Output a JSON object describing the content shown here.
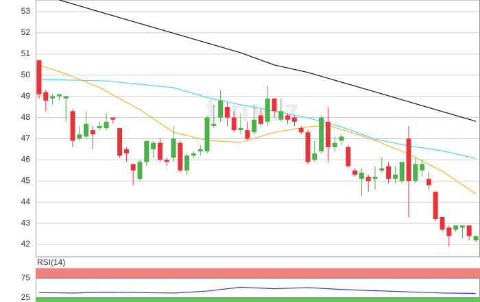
{
  "chart_data": [
    {
      "type": "candlestick",
      "watermark": "finviz",
      "up_color": "#4cb04c",
      "down_color": "#e8333a",
      "open": [
        50.7,
        49.2,
        48.9,
        49.0,
        48.9,
        48.3,
        47.0,
        47.1,
        47.4,
        47.5,
        47.5,
        48.0,
        47.5,
        46.5,
        45.8,
        45.1,
        45.9,
        46.5,
        46.8,
        46.0,
        46.1,
        46.8,
        45.5,
        46.2,
        46.4,
        46.4,
        47.6,
        48.0,
        48.5,
        48.0,
        47.4,
        47.4,
        47.3,
        48.1,
        47.8,
        48.9,
        47.9,
        48.1,
        48.0,
        47.5,
        47.3,
        46.0,
        46.4,
        47.8,
        46.6,
        46.9,
        46.6,
        45.5,
        45.1,
        45.2,
        45.1,
        45.5,
        45.7,
        45.1,
        45.0,
        47.0,
        45.0,
        45.5,
        45.1,
        44.5,
        43.3,
        42.8,
        42.7,
        42.8,
        42.9,
        42.2
      ],
      "high": [
        50.7,
        49.3,
        49.1,
        49.1,
        49.0,
        48.4,
        47.6,
        48.3,
        47.6,
        47.8,
        48.2,
        48.0,
        47.5,
        46.6,
        45.8,
        46.0,
        46.9,
        46.9,
        47.0,
        46.1,
        47.6,
        46.9,
        46.3,
        46.4,
        46.7,
        48.1,
        48.6,
        49.3,
        48.7,
        48.3,
        48.2,
        47.8,
        48.6,
        48.4,
        49.5,
        48.9,
        48.9,
        48.2,
        48.1,
        47.6,
        47.4,
        46.9,
        48.1,
        48.5,
        47.1,
        47.2,
        46.7,
        45.6,
        45.6,
        45.3,
        45.7,
        46.1,
        45.9,
        45.7,
        45.9,
        47.6,
        46.1,
        46.0,
        45.4,
        44.5,
        43.3,
        42.9,
        42.9,
        42.9,
        42.9,
        42.4
      ],
      "low": [
        48.9,
        48.3,
        48.6,
        48.8,
        47.8,
        46.6,
        46.9,
        47.0,
        46.5,
        47.4,
        47.4,
        47.7,
        46.1,
        45.9,
        44.8,
        45.0,
        45.7,
        46.1,
        45.9,
        45.7,
        45.9,
        45.4,
        45.3,
        46.1,
        46.2,
        46.3,
        47.5,
        47.8,
        47.6,
        47.3,
        47.2,
        46.9,
        47.2,
        47.6,
        47.6,
        48.0,
        47.8,
        47.7,
        47.6,
        47.2,
        45.8,
        45.9,
        46.3,
        45.9,
        46.4,
        46.7,
        45.6,
        45.2,
        44.3,
        44.5,
        44.6,
        45.4,
        44.9,
        44.9,
        44.9,
        43.3,
        44.9,
        45.2,
        44.6,
        43.1,
        42.6,
        41.9,
        42.6,
        42.3,
        42.2,
        42.1
      ],
      "close": [
        49.1,
        48.8,
        49.0,
        49.1,
        49.0,
        46.9,
        47.2,
        47.7,
        47.2,
        47.6,
        47.8,
        47.9,
        46.2,
        46.3,
        45.5,
        45.9,
        46.9,
        46.8,
        46.0,
        45.9,
        47.0,
        45.5,
        46.2,
        46.3,
        46.5,
        48.0,
        47.7,
        48.8,
        48.0,
        47.4,
        47.5,
        47.0,
        47.9,
        47.7,
        48.9,
        48.3,
        48.3,
        47.9,
        47.8,
        47.3,
        45.9,
        46.3,
        48.0,
        46.6,
        46.8,
        47.1,
        45.7,
        45.3,
        45.4,
        45.0,
        45.2,
        45.6,
        45.1,
        45.3,
        45.9,
        45.0,
        45.8,
        45.8,
        44.8,
        43.2,
        42.7,
        42.4,
        42.9,
        42.9,
        42.4,
        42.4
      ],
      "overlays": [
        {
          "color": "#222222",
          "x": [
            3,
            10,
            20,
            30,
            35,
            40,
            50,
            60,
            65
          ],
          "values": [
            53.55,
            52.9,
            51.98,
            51.06,
            50.48,
            50.13,
            49.21,
            48.28,
            47.82
          ]
        },
        {
          "color": "#5ad6ec",
          "x": [
            0,
            10,
            20,
            25,
            30,
            35,
            40,
            45,
            50,
            55,
            60,
            65
          ],
          "values": [
            49.8,
            49.73,
            49.41,
            48.95,
            48.6,
            48.31,
            47.98,
            47.56,
            46.98,
            46.66,
            46.43,
            46.07
          ]
        },
        {
          "color": "#f5b94a",
          "x": [
            0,
            4,
            9,
            15,
            20,
            25,
            30,
            35,
            40,
            43,
            47,
            50,
            55,
            60,
            65
          ],
          "values": [
            50.48,
            50.06,
            49.41,
            48.37,
            47.3,
            46.92,
            46.82,
            47.3,
            47.56,
            47.63,
            47.24,
            46.92,
            46.27,
            45.46,
            44.39
          ]
        }
      ],
      "ylim": [
        41.42,
        53.55
      ],
      "yticks": [
        42,
        43,
        44,
        45,
        46,
        47,
        48,
        49,
        50,
        51,
        52,
        53
      ],
      "grid": true
    },
    {
      "type": "line",
      "title": "RSI(14)",
      "color": "#2a3fd6",
      "x": [
        0,
        5,
        10,
        15,
        20,
        25,
        30,
        35,
        40,
        45,
        50,
        55,
        60,
        65
      ],
      "values": [
        38,
        37,
        39,
        38,
        37,
        42,
        52,
        48,
        51,
        46,
        43,
        40,
        37,
        36
      ],
      "bands": [
        {
          "from": 75,
          "to": 100,
          "color": "#f08080"
        },
        {
          "from": 14,
          "to": 25,
          "color": "#5cc85c"
        }
      ],
      "ylim": [
        14,
        100
      ],
      "yticks": [
        25,
        75
      ],
      "grid": true
    }
  ]
}
